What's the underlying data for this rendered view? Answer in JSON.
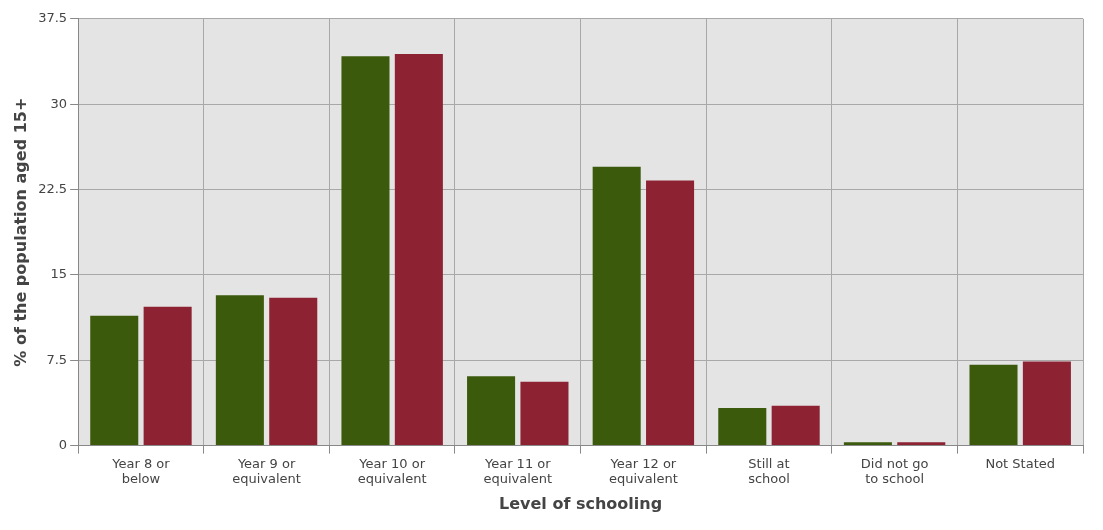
{
  "chart_data": {
    "type": "bar",
    "xlabel": "Level of schooling",
    "ylabel": "% of the population aged 15+",
    "categories": [
      "Year 8 or below",
      "Year 9 or equivalent",
      "Year 10 or equivalent",
      "Year 11 or equivalent",
      "Year 12 or equivalent",
      "Still at school",
      "Did not go to school",
      "Not Stated"
    ],
    "series": [
      {
        "color": "#3b5a0c",
        "values": [
          11.4,
          13.2,
          34.2,
          6.1,
          24.5,
          3.3,
          0.3,
          7.1
        ]
      },
      {
        "color": "#8c2232",
        "values": [
          12.2,
          13.0,
          34.4,
          5.6,
          23.3,
          3.5,
          0.3,
          7.4
        ]
      }
    ],
    "ylim": [
      0,
      37.5
    ],
    "yticks": [
      0,
      7.5,
      15,
      22.5,
      30,
      37.5
    ],
    "grid": true,
    "legend": false
  }
}
